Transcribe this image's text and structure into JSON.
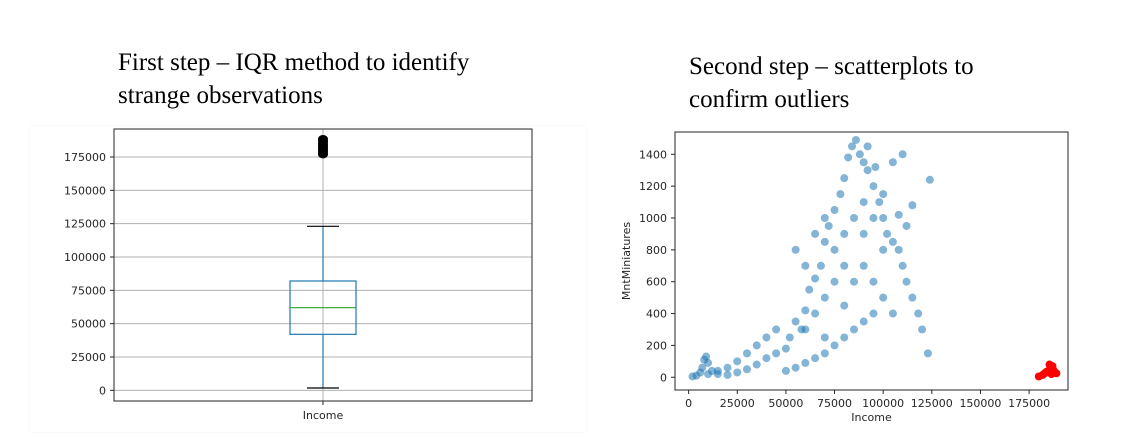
{
  "left_caption": {
    "line1": "First step – IQR method to identify",
    "line2": "strange observations"
  },
  "right_caption": {
    "line1": "Second step – scatterplots to",
    "line2": "confirm outliers"
  },
  "colors": {
    "box": "#1f77b4",
    "median": "#2ca02c",
    "grid": "#b0b0b0",
    "outlier": "#000000",
    "scatter": "#1f77b4",
    "highlight": "#ff0000"
  },
  "chart_data": [
    {
      "type": "box",
      "categories": [
        "Income"
      ],
      "xlabel": "",
      "ylabel": "",
      "grid": true,
      "ylim": [
        -8000,
        196000
      ],
      "yticks": [
        0,
        25000,
        50000,
        75000,
        100000,
        125000,
        150000,
        175000
      ],
      "ytick_labels": [
        "0",
        "25000",
        "50000",
        "75000",
        "100000",
        "125000",
        "150000",
        "175000"
      ],
      "stats": {
        "whisker_low": 1730,
        "q1": 42000,
        "median": 62000,
        "q3": 82000,
        "whisker_high": 123000
      },
      "outliers": [
        177000,
        178500,
        180000,
        181500,
        183000,
        184000,
        185500,
        187000,
        188500
      ]
    },
    {
      "type": "scatter",
      "xlabel": "Income",
      "ylabel": "MntMiniatures",
      "xlim": [
        -7000,
        195000
      ],
      "ylim": [
        -80,
        1540
      ],
      "xticks": [
        0,
        25000,
        50000,
        75000,
        100000,
        125000,
        150000,
        175000
      ],
      "xtick_labels": [
        "0",
        "25000",
        "50000",
        "75000",
        "100000",
        "125000",
        "150000",
        "175000"
      ],
      "yticks": [
        0,
        200,
        400,
        600,
        800,
        1000,
        1200,
        1400
      ],
      "ytick_labels": [
        "0",
        "200",
        "400",
        "600",
        "800",
        "1000",
        "1200",
        "1400"
      ],
      "series": [
        {
          "color": "#1f77b4",
          "points": [
            [
              2000,
              5
            ],
            [
              4000,
              10
            ],
            [
              6000,
              30
            ],
            [
              7000,
              60
            ],
            [
              8000,
              110
            ],
            [
              9000,
              130
            ],
            [
              10000,
              90
            ],
            [
              12000,
              40
            ],
            [
              15000,
              20
            ],
            [
              20000,
              15
            ],
            [
              25000,
              30
            ],
            [
              30000,
              50
            ],
            [
              35000,
              80
            ],
            [
              40000,
              120
            ],
            [
              45000,
              150
            ],
            [
              50000,
              180
            ],
            [
              52000,
              250
            ],
            [
              55000,
              350
            ],
            [
              58000,
              300
            ],
            [
              60000,
              420
            ],
            [
              62000,
              550
            ],
            [
              65000,
              620
            ],
            [
              68000,
              700
            ],
            [
              70000,
              850
            ],
            [
              72000,
              950
            ],
            [
              75000,
              1050
            ],
            [
              78000,
              1150
            ],
            [
              80000,
              1250
            ],
            [
              82000,
              1380
            ],
            [
              84000,
              1450
            ],
            [
              86000,
              1490
            ],
            [
              88000,
              1400
            ],
            [
              90000,
              1350
            ],
            [
              92000,
              1300
            ],
            [
              95000,
              1200
            ],
            [
              98000,
              1100
            ],
            [
              100000,
              1000
            ],
            [
              102000,
              900
            ],
            [
              105000,
              850
            ],
            [
              108000,
              800
            ],
            [
              110000,
              700
            ],
            [
              112000,
              600
            ],
            [
              115000,
              500
            ],
            [
              118000,
              400
            ],
            [
              120000,
              300
            ],
            [
              123000,
              150
            ],
            [
              124000,
              1240
            ],
            [
              110000,
              1400
            ],
            [
              105000,
              1350
            ],
            [
              115000,
              1080
            ],
            [
              50000,
              40
            ],
            [
              55000,
              60
            ],
            [
              60000,
              90
            ],
            [
              65000,
              120
            ],
            [
              70000,
              150
            ],
            [
              75000,
              200
            ],
            [
              80000,
              250
            ],
            [
              85000,
              300
            ],
            [
              90000,
              350
            ],
            [
              95000,
              400
            ],
            [
              60000,
              700
            ],
            [
              55000,
              800
            ],
            [
              65000,
              900
            ],
            [
              70000,
              1000
            ],
            [
              75000,
              800
            ],
            [
              80000,
              900
            ],
            [
              85000,
              1000
            ],
            [
              90000,
              1100
            ],
            [
              95000,
              1000
            ],
            [
              100000,
              800
            ],
            [
              85000,
              600
            ],
            [
              90000,
              700
            ],
            [
              95000,
              600
            ],
            [
              100000,
              500
            ],
            [
              105000,
              400
            ],
            [
              70000,
              500
            ],
            [
              75000,
              600
            ],
            [
              80000,
              700
            ],
            [
              65000,
              400
            ],
            [
              60000,
              300
            ],
            [
              45000,
              300
            ],
            [
              40000,
              250
            ],
            [
              35000,
              200
            ],
            [
              30000,
              150
            ],
            [
              25000,
              100
            ],
            [
              20000,
              60
            ],
            [
              15000,
              40
            ],
            [
              10000,
              20
            ],
            [
              70000,
              250
            ],
            [
              80000,
              450
            ],
            [
              90000,
              900
            ],
            [
              100000,
              1150
            ],
            [
              108000,
              1020
            ],
            [
              112000,
              950
            ],
            [
              96000,
              1320
            ],
            [
              92000,
              1450
            ]
          ]
        },
        {
          "color": "#ff0000",
          "points": [
            [
              180000,
              5
            ],
            [
              182000,
              15
            ],
            [
              183000,
              25
            ],
            [
              184000,
              35
            ],
            [
              185000,
              40
            ],
            [
              186000,
              60
            ],
            [
              187000,
              70
            ],
            [
              188000,
              30
            ],
            [
              189000,
              25
            ],
            [
              185500,
              80
            ],
            [
              187500,
              45
            ],
            [
              186500,
              20
            ]
          ]
        }
      ]
    }
  ]
}
